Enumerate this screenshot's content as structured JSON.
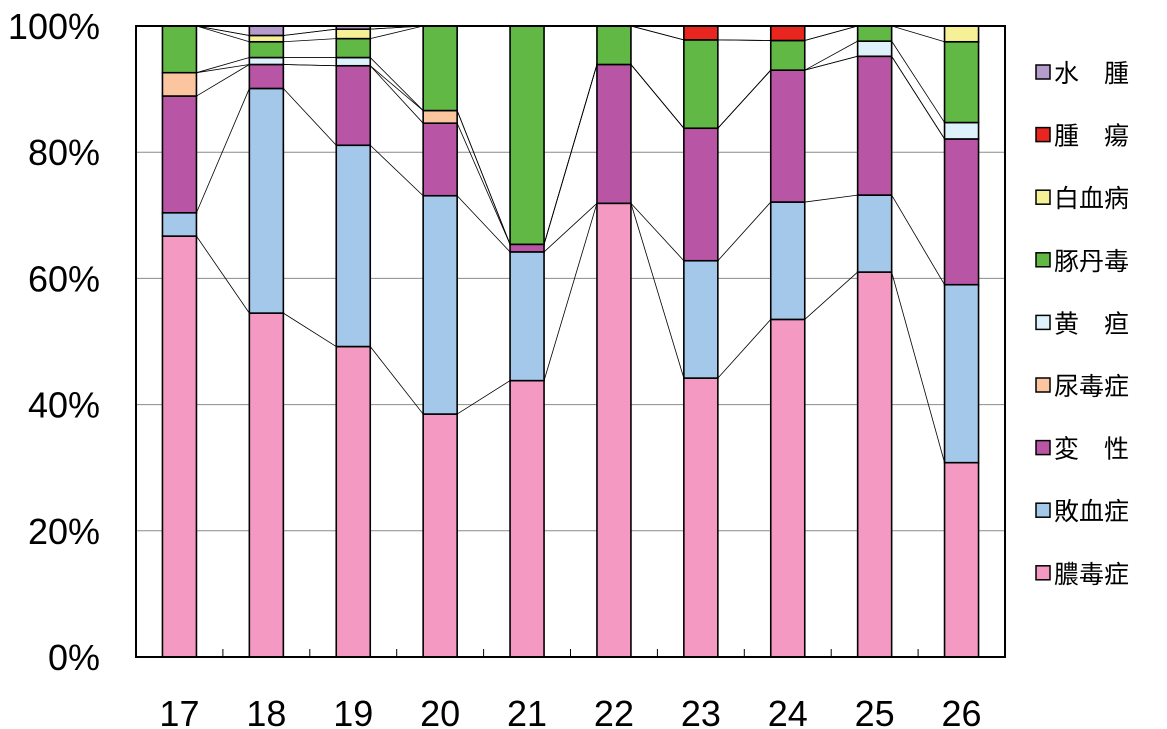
{
  "chart_data": {
    "type": "bar",
    "stacked": true,
    "normalized": true,
    "categories": [
      "17",
      "18",
      "19",
      "20",
      "21",
      "22",
      "23",
      "24",
      "25",
      "26"
    ],
    "ylim": [
      0,
      100
    ],
    "yticks": [
      0,
      20,
      40,
      60,
      80,
      100
    ],
    "ytick_labels": [
      "0%",
      "20%",
      "40%",
      "60%",
      "80%",
      "100%"
    ],
    "grid": true,
    "legend_position": "right",
    "series": [
      {
        "name": "膿毒症",
        "color": "#f49ac2",
        "values": [
          66.7,
          54.5,
          49.2,
          38.5,
          43.8,
          71.9,
          44.2,
          53.5,
          61.0,
          30.8
        ]
      },
      {
        "name": "敗血症",
        "color": "#a3c8ea",
        "values": [
          3.7,
          35.6,
          31.9,
          34.6,
          20.4,
          0.0,
          18.6,
          18.6,
          12.2,
          28.2
        ]
      },
      {
        "name": "変　性",
        "color": "#b855a5",
        "values": [
          18.5,
          3.8,
          12.6,
          11.5,
          1.2,
          22.0,
          21.0,
          20.9,
          22.0,
          23.1
        ]
      },
      {
        "name": "尿毒症",
        "color": "#fbc69f",
        "values": [
          3.7,
          0.0,
          0.0,
          2.0,
          0.0,
          0.0,
          0.0,
          0.0,
          0.0,
          0.0
        ]
      },
      {
        "name": "黄　疸",
        "color": "#ddf1fb",
        "values": [
          0.0,
          1.1,
          1.3,
          0.0,
          0.0,
          0.0,
          0.0,
          0.0,
          2.4,
          2.6
        ]
      },
      {
        "name": "豚丹毒",
        "color": "#62b845",
        "values": [
          7.4,
          2.5,
          3.0,
          13.4,
          34.6,
          6.1,
          14.0,
          4.7,
          2.4,
          12.8
        ]
      },
      {
        "name": "白血病",
        "color": "#f6f197",
        "values": [
          0.0,
          1.0,
          1.5,
          0.0,
          0.0,
          0.0,
          0.0,
          0.0,
          0.0,
          2.5
        ]
      },
      {
        "name": "腫　瘍",
        "color": "#e8251f",
        "values": [
          0.0,
          0.0,
          0.0,
          0.0,
          0.0,
          0.0,
          2.2,
          2.3,
          0.0,
          0.0
        ]
      },
      {
        "name": "水　腫",
        "color": "#b59ccc",
        "values": [
          0.0,
          1.5,
          0.5,
          0.0,
          0.0,
          0.0,
          0.0,
          0.0,
          0.0,
          0.0
        ]
      }
    ]
  }
}
